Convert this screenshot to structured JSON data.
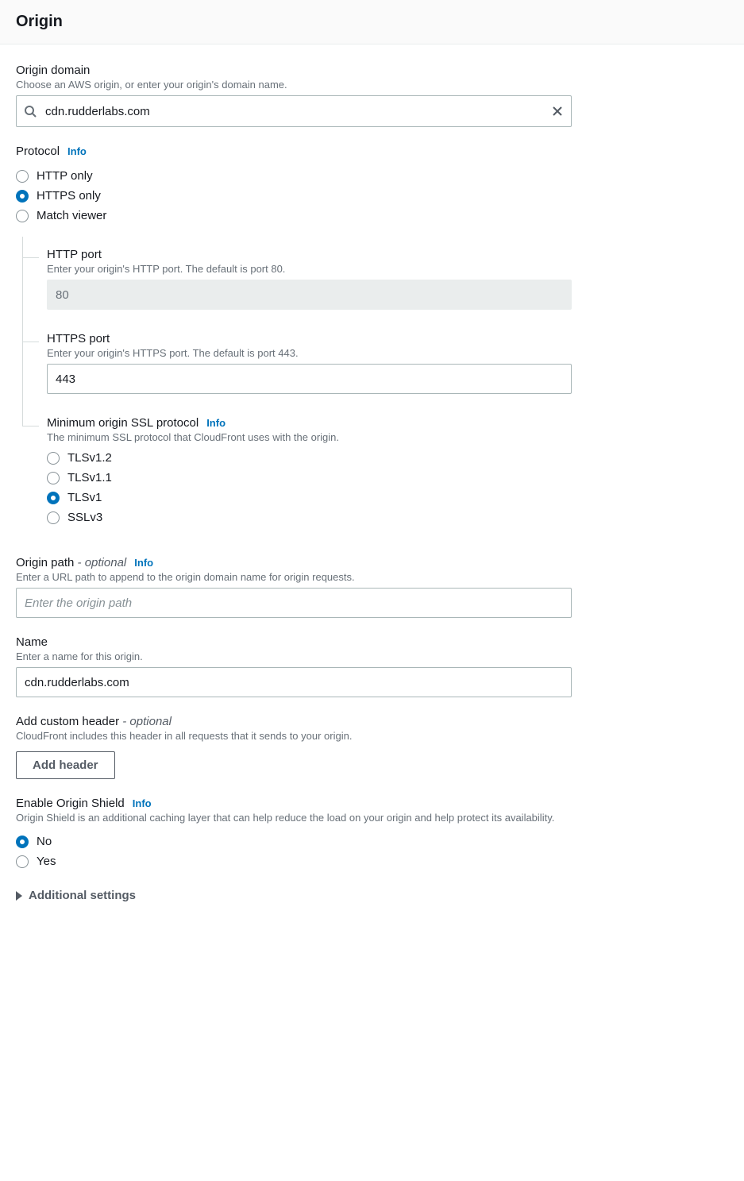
{
  "header": {
    "title": "Origin"
  },
  "origin_domain": {
    "label": "Origin domain",
    "description": "Choose an AWS origin, or enter your origin's domain name.",
    "value": "cdn.rudderlabs.com"
  },
  "protocol": {
    "label": "Protocol",
    "info": "Info",
    "options": [
      "HTTP only",
      "HTTPS only",
      "Match viewer"
    ],
    "selected": "HTTPS only"
  },
  "http_port": {
    "label": "HTTP port",
    "description": "Enter your origin's HTTP port. The default is port 80.",
    "value": "80",
    "disabled": true
  },
  "https_port": {
    "label": "HTTPS port",
    "description": "Enter your origin's HTTPS port. The default is port 443.",
    "value": "443",
    "disabled": false
  },
  "ssl_protocol": {
    "label": "Minimum origin SSL protocol",
    "info": "Info",
    "description": "The minimum SSL protocol that CloudFront uses with the origin.",
    "options": [
      "TLSv1.2",
      "TLSv1.1",
      "TLSv1",
      "SSLv3"
    ],
    "selected": "TLSv1"
  },
  "origin_path": {
    "label": "Origin path",
    "optional_suffix": "- optional",
    "info": "Info",
    "description": "Enter a URL path to append to the origin domain name for origin requests.",
    "placeholder": "Enter the origin path",
    "value": ""
  },
  "name": {
    "label": "Name",
    "description": "Enter a name for this origin.",
    "value": "cdn.rudderlabs.com"
  },
  "custom_header": {
    "label": "Add custom header",
    "optional_suffix": "- optional",
    "description": "CloudFront includes this header in all requests that it sends to your origin.",
    "button": "Add header"
  },
  "origin_shield": {
    "label": "Enable Origin Shield",
    "info": "Info",
    "description": "Origin Shield is an additional caching layer that can help reduce the load on your origin and help protect its availability.",
    "options": [
      "No",
      "Yes"
    ],
    "selected": "No"
  },
  "additional_settings": {
    "label": "Additional settings"
  },
  "colors": {
    "primary": "#0073bb",
    "text": "#16191f",
    "muted": "#687078",
    "border": "#aab7b8",
    "disabled_bg": "#eaeded"
  }
}
